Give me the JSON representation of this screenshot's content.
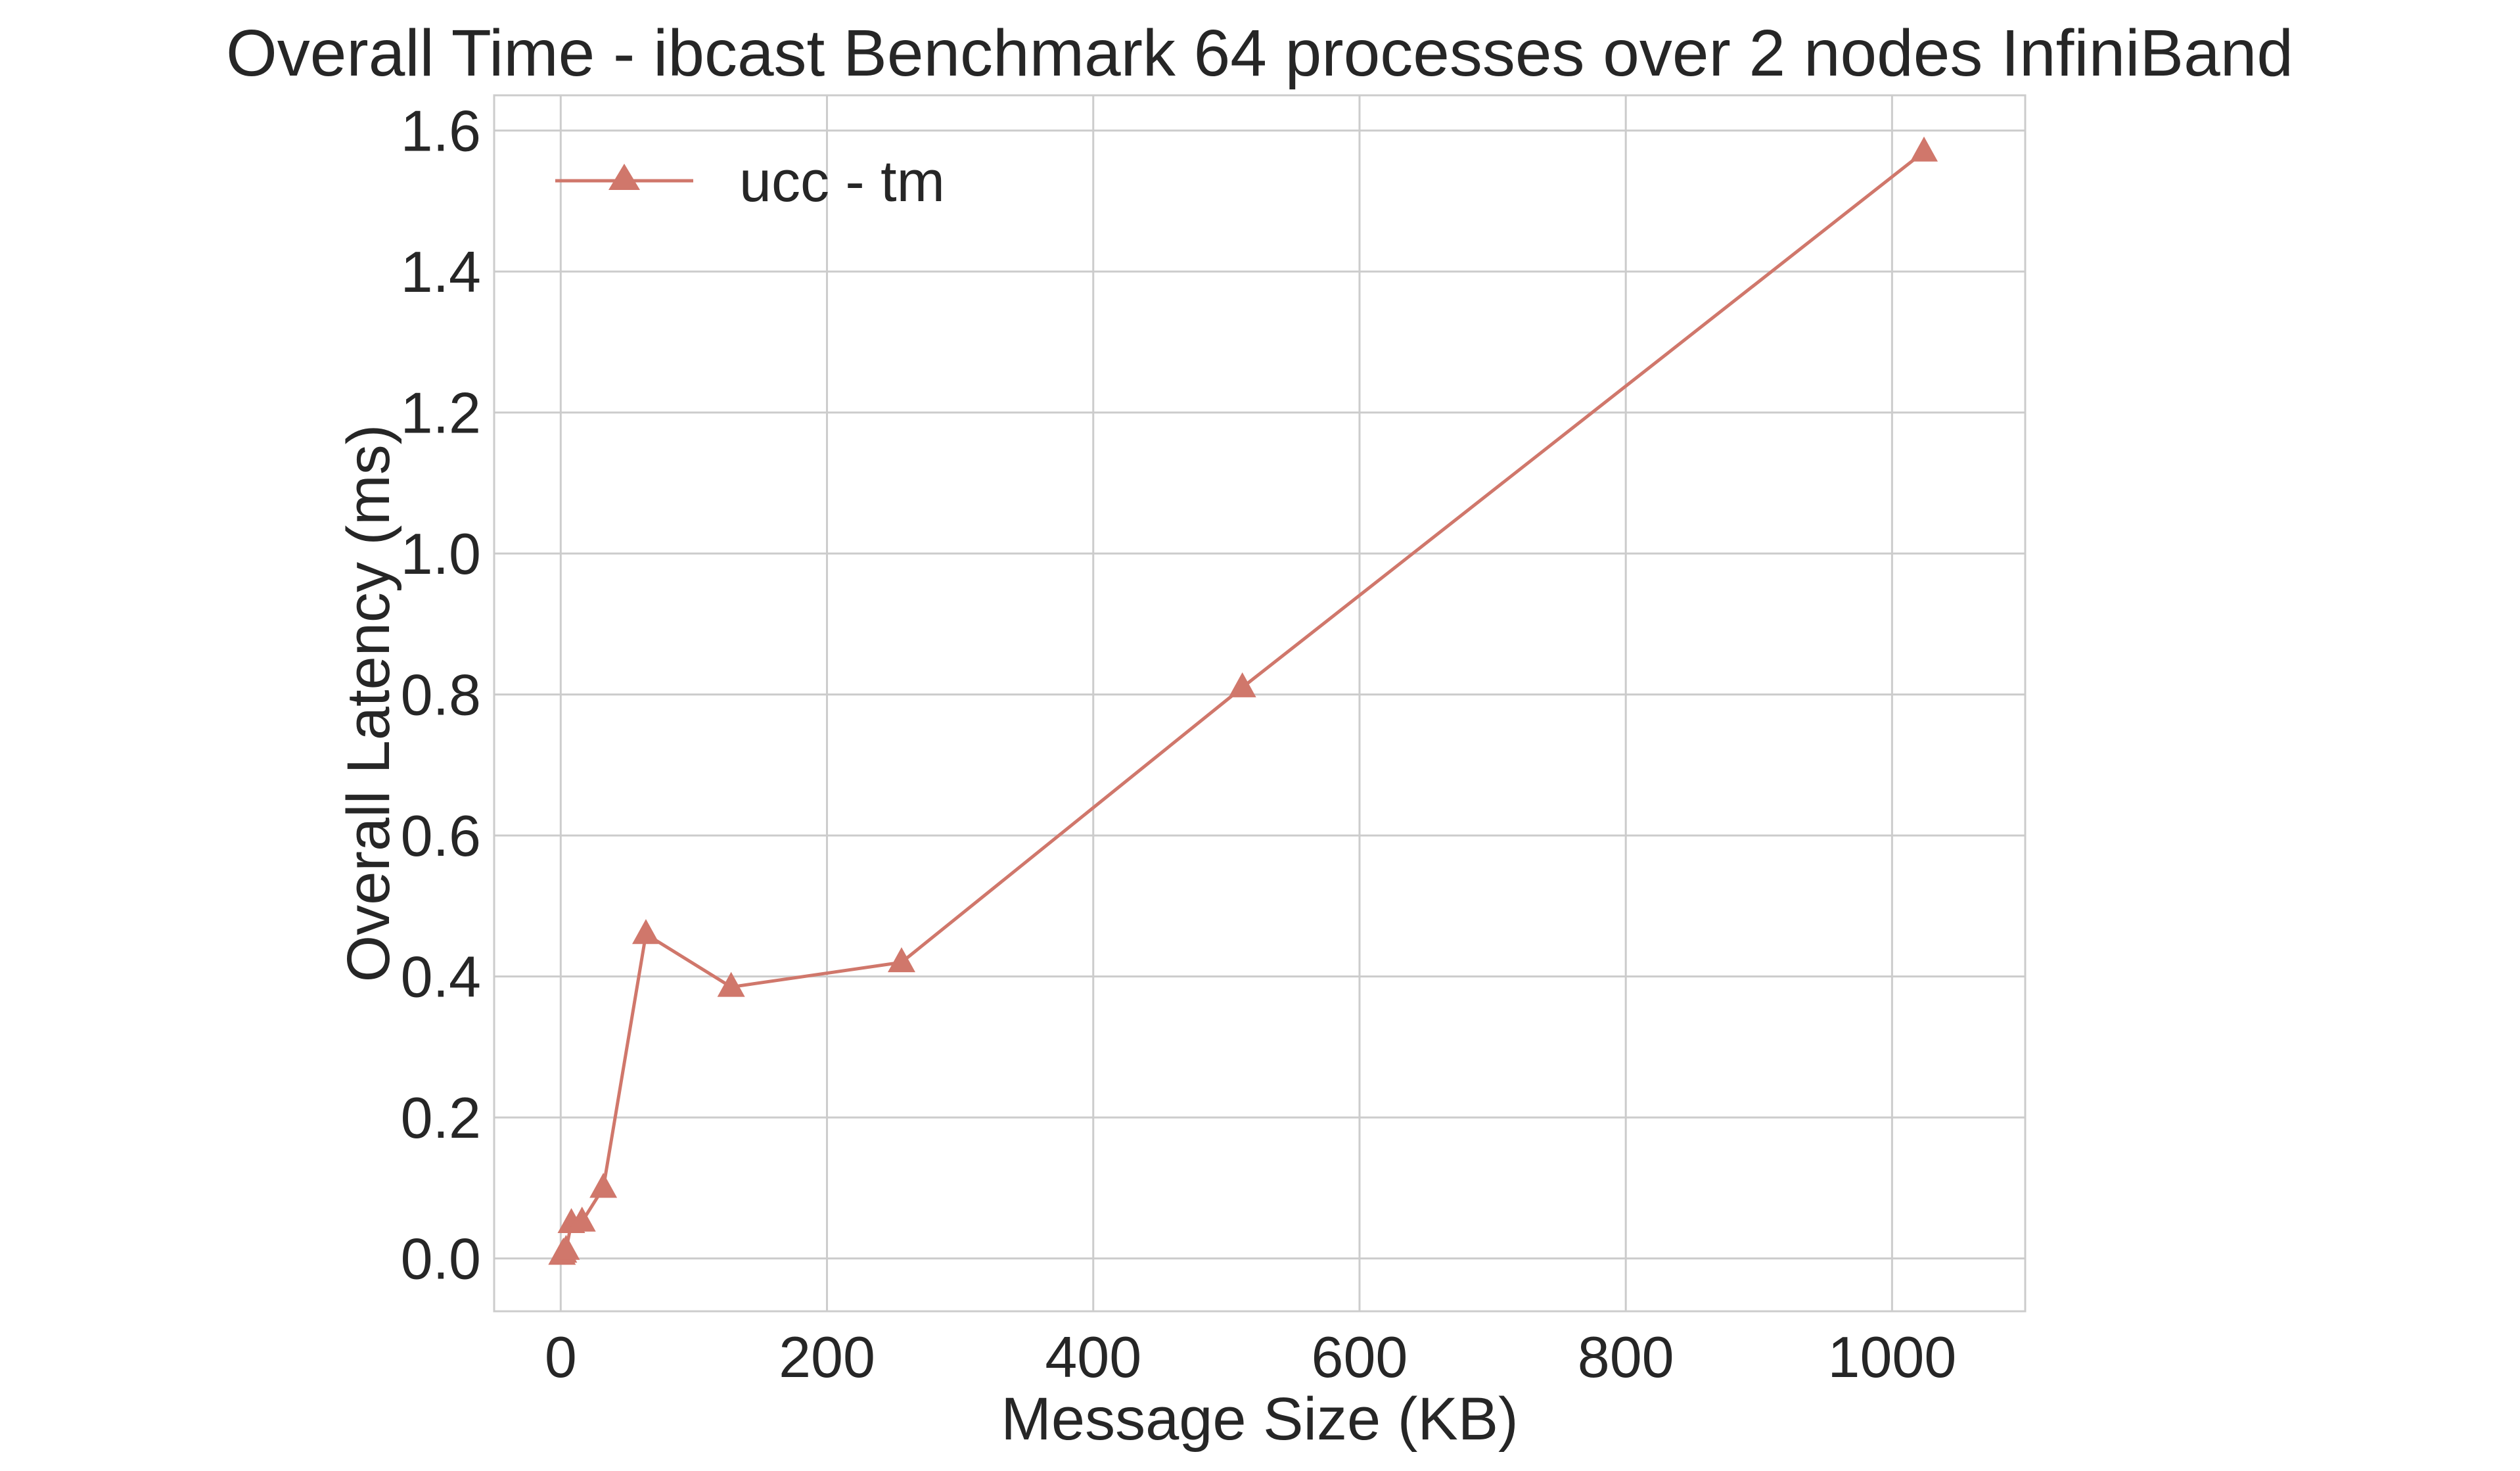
{
  "chart_data": {
    "type": "line",
    "title": "Overall Time - ibcast Benchmark 64 processes over 2 nodes InfiniBand",
    "xlabel": "Message Size (KB)",
    "ylabel": "Overall Latency (ms)",
    "xlim": [
      -50,
      1100
    ],
    "ylim": [
      -0.075,
      1.65
    ],
    "xticks": [
      0,
      200,
      400,
      600,
      800,
      1000
    ],
    "yticks": [
      0.0,
      0.2,
      0.4,
      0.6,
      0.8,
      1.0,
      1.2,
      1.4,
      1.6
    ],
    "xtick_labels": [
      "0",
      "200",
      "400",
      "600",
      "800",
      "1000"
    ],
    "ytick_labels": [
      "0.0",
      "0.2",
      "0.4",
      "0.6",
      "0.8",
      "1.0",
      "1.2",
      "1.4",
      "1.6"
    ],
    "grid": true,
    "legend_position": "top-left",
    "series": [
      {
        "name": "ucc - tm",
        "color": "#d0776b",
        "marker": "triangle",
        "x": [
          1,
          2,
          4,
          8,
          16,
          32,
          64,
          128,
          256,
          512,
          1024
        ],
        "y": [
          0.005,
          0.008,
          0.012,
          0.05,
          0.052,
          0.1,
          0.46,
          0.385,
          0.42,
          0.81,
          1.57
        ]
      }
    ]
  }
}
